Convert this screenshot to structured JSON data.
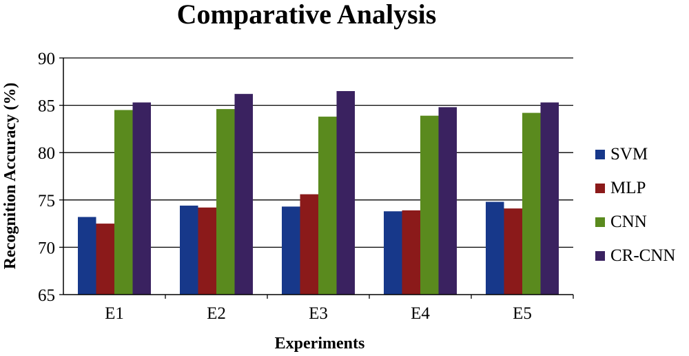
{
  "chart_data": {
    "type": "bar",
    "title": "Comparative Analysis",
    "xlabel": "Experiments",
    "ylabel": "Recognition Accuracy (%)",
    "ylim": [
      65,
      90
    ],
    "yticks": [
      65,
      70,
      75,
      80,
      85,
      90
    ],
    "grid": true,
    "legend_position": "right",
    "categories": [
      "E1",
      "E2",
      "E3",
      "E4",
      "E5"
    ],
    "series": [
      {
        "name": "SVM",
        "color": "#17388A",
        "values": [
          73.2,
          74.4,
          74.3,
          73.8,
          74.8
        ]
      },
      {
        "name": "MLP",
        "color": "#8B1A1A",
        "values": [
          72.5,
          74.2,
          75.6,
          73.9,
          74.1
        ]
      },
      {
        "name": "CNN",
        "color": "#5A8A1E",
        "values": [
          84.5,
          84.6,
          83.8,
          83.9,
          84.2
        ]
      },
      {
        "name": "CR-CNN",
        "color": "#3A2260",
        "values": [
          85.3,
          86.2,
          86.5,
          84.8,
          85.3
        ]
      }
    ]
  }
}
